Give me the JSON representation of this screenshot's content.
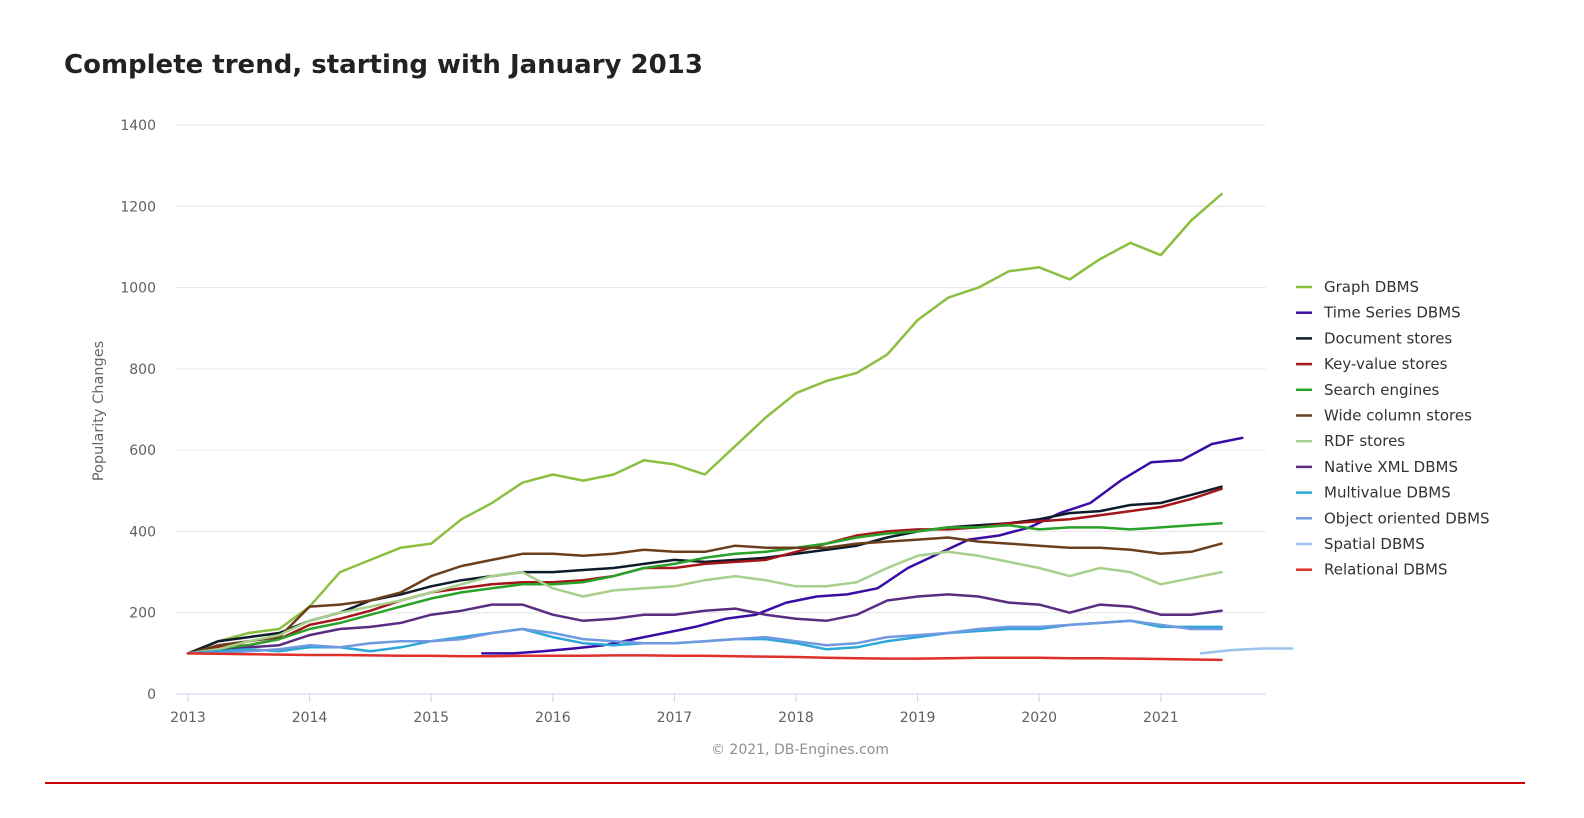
{
  "title": "Complete trend, starting with January 2013",
  "credit": "© 2021, DB-Engines.com",
  "chart_data": {
    "type": "line",
    "ylabel": "Popularity Changes",
    "xlabel": "",
    "xlim": [
      2013,
      2021.83
    ],
    "ylim": [
      0,
      1400
    ],
    "x_ticks": [
      "2013",
      "2014",
      "2015",
      "2016",
      "2017",
      "2018",
      "2019",
      "2020",
      "2021"
    ],
    "y_ticks": [
      "0",
      "200",
      "400",
      "600",
      "800",
      "1000",
      "1200",
      "1400"
    ],
    "grid": true,
    "legend_position": "right",
    "series": [
      {
        "name": "Graph DBMS",
        "color": "#8cbf3f",
        "start": 2013,
        "step": 0.25,
        "values": [
          100,
          130,
          150,
          160,
          215,
          300,
          330,
          360,
          370,
          430,
          470,
          520,
          540,
          525,
          540,
          575,
          565,
          540,
          610,
          680,
          740,
          770,
          790,
          835,
          920,
          975,
          1000,
          1040,
          1050,
          1020,
          1070,
          1110,
          1080,
          1165,
          1230
        ]
      },
      {
        "name": "Time Series DBMS",
        "color": "#3a0ca3",
        "start": 2015.42,
        "step": 0.25,
        "values": [
          100,
          100,
          105,
          112,
          120,
          135,
          150,
          165,
          185,
          195,
          225,
          240,
          245,
          260,
          310,
          345,
          380,
          390,
          410,
          445,
          470,
          525,
          570,
          575,
          615,
          630
        ]
      },
      {
        "name": "Document stores",
        "color": "#0d1b2a",
        "start": 2013,
        "step": 0.25,
        "values": [
          100,
          130,
          140,
          150,
          180,
          200,
          230,
          245,
          265,
          280,
          290,
          300,
          300,
          305,
          310,
          320,
          330,
          325,
          330,
          335,
          345,
          355,
          365,
          385,
          400,
          410,
          415,
          420,
          430,
          445,
          450,
          465,
          470,
          490,
          510
        ]
      },
      {
        "name": "Key-value stores",
        "color": "#a4161a",
        "start": 2013,
        "step": 0.25,
        "values": [
          100,
          115,
          120,
          135,
          170,
          185,
          205,
          230,
          250,
          260,
          270,
          275,
          275,
          280,
          290,
          310,
          310,
          320,
          325,
          330,
          350,
          370,
          390,
          400,
          405,
          405,
          410,
          420,
          425,
          430,
          440,
          450,
          460,
          480,
          505
        ]
      },
      {
        "name": "Search engines",
        "color": "#2aa22a",
        "start": 2013,
        "step": 0.25,
        "values": [
          100,
          110,
          120,
          135,
          160,
          175,
          195,
          215,
          235,
          250,
          260,
          270,
          270,
          275,
          290,
          310,
          320,
          335,
          345,
          350,
          360,
          370,
          385,
          395,
          400,
          410,
          410,
          415,
          405,
          410,
          410,
          405,
          410,
          415,
          420
        ]
      },
      {
        "name": "Wide column stores",
        "color": "#6b3e1c",
        "start": 2013,
        "step": 0.25,
        "values": [
          100,
          120,
          130,
          140,
          215,
          220,
          230,
          250,
          290,
          315,
          330,
          345,
          345,
          340,
          345,
          355,
          350,
          350,
          365,
          360,
          360,
          360,
          370,
          375,
          380,
          385,
          375,
          370,
          365,
          360,
          360,
          355,
          345,
          350,
          370
        ]
      },
      {
        "name": "RDF stores",
        "color": "#a8d08d",
        "start": 2013,
        "step": 0.25,
        "values": [
          100,
          110,
          130,
          145,
          180,
          200,
          215,
          230,
          250,
          270,
          290,
          300,
          260,
          240,
          255,
          260,
          265,
          280,
          290,
          280,
          265,
          265,
          275,
          310,
          340,
          350,
          340,
          325,
          310,
          290,
          310,
          300,
          270,
          285,
          300
        ]
      },
      {
        "name": "Native XML DBMS",
        "color": "#5a2d82",
        "start": 2013,
        "step": 0.25,
        "values": [
          100,
          105,
          115,
          120,
          145,
          160,
          165,
          175,
          195,
          205,
          220,
          220,
          195,
          180,
          185,
          195,
          195,
          205,
          210,
          195,
          185,
          180,
          195,
          230,
          240,
          245,
          240,
          225,
          220,
          200,
          220,
          215,
          195,
          195,
          205
        ]
      },
      {
        "name": "Multivalue DBMS",
        "color": "#2ba7d8",
        "start": 2013,
        "step": 0.25,
        "values": [
          100,
          105,
          110,
          105,
          115,
          115,
          105,
          115,
          130,
          140,
          150,
          160,
          140,
          125,
          120,
          125,
          125,
          130,
          135,
          135,
          125,
          110,
          115,
          130,
          140,
          150,
          155,
          160,
          160,
          170,
          175,
          180,
          165,
          165,
          165
        ]
      },
      {
        "name": "Object oriented DBMS",
        "color": "#6f9ae0",
        "start": 2013,
        "step": 0.25,
        "values": [
          100,
          100,
          105,
          110,
          120,
          115,
          125,
          130,
          130,
          135,
          150,
          160,
          150,
          135,
          130,
          125,
          125,
          130,
          135,
          140,
          130,
          120,
          125,
          140,
          145,
          150,
          160,
          165,
          165,
          170,
          175,
          180,
          170,
          160,
          160
        ]
      },
      {
        "name": "Spatial DBMS",
        "color": "#9cc3eb",
        "start": 2021.33,
        "step": 0.25,
        "values": [
          100,
          108,
          112,
          112
        ]
      },
      {
        "name": "Relational DBMS",
        "color": "#e0302c",
        "start": 2013,
        "step": 0.25,
        "values": [
          100,
          99,
          98,
          97,
          96,
          96,
          95,
          94,
          94,
          93,
          93,
          94,
          94,
          94,
          95,
          95,
          94,
          94,
          93,
          92,
          91,
          89,
          88,
          87,
          87,
          88,
          89,
          89,
          89,
          88,
          88,
          87,
          86,
          85,
          84
        ]
      }
    ]
  }
}
